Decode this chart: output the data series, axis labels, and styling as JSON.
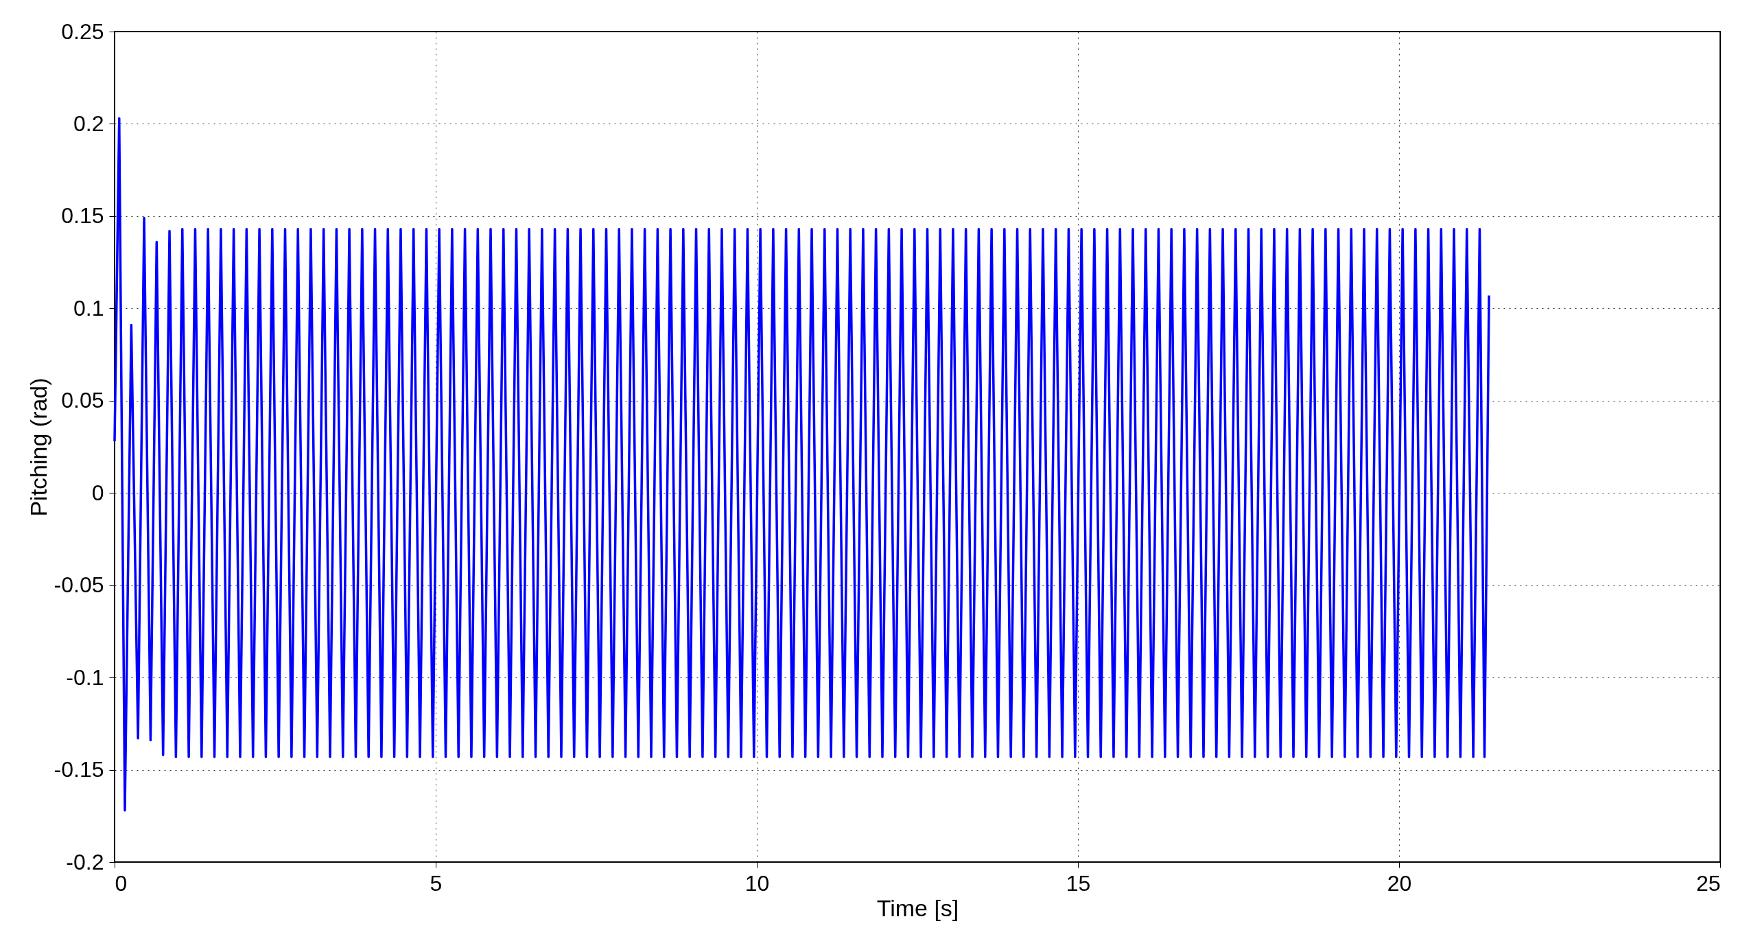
{
  "chart_data": {
    "type": "line",
    "xlabel": "Time [s]",
    "ylabel": "Pitching (rad)",
    "xlim": [
      0,
      25
    ],
    "xticks": [
      0,
      5,
      10,
      15,
      20,
      25
    ],
    "ylim": [
      -0.2,
      0.25
    ],
    "yticks": [
      -0.2,
      -0.15,
      -0.1,
      -0.05,
      0,
      0.05,
      0.1,
      0.15,
      0.2,
      0.25
    ],
    "grid": true,
    "x": [
      0,
      0.072,
      0.16,
      0.26,
      0.365,
      0.46,
      0.56,
      0.655,
      0.755,
      0.855,
      0.955,
      1.055,
      1.155,
      1.255,
      1.355,
      1.455,
      1.555,
      1.655,
      1.755,
      1.855,
      1.955,
      2.055,
      2.155,
      2.255,
      2.355,
      2.455,
      2.555,
      2.655,
      2.755,
      2.855,
      2.955,
      3.055,
      3.155,
      3.255,
      3.355,
      3.455,
      3.555,
      3.655,
      3.755,
      3.855,
      3.955,
      4.055,
      4.155,
      4.255,
      4.355,
      4.455,
      4.555,
      4.655,
      4.755,
      4.855,
      4.955,
      5.055,
      5.155,
      5.255,
      5.355,
      5.455,
      5.555,
      5.655,
      5.755,
      5.855,
      5.955,
      6.055,
      6.155,
      6.255,
      6.355,
      6.455,
      6.555,
      6.655,
      6.755,
      6.855,
      6.955,
      7.055,
      7.155,
      7.255,
      7.355,
      7.455,
      7.555,
      7.655,
      7.755,
      7.855,
      7.955,
      8.055,
      8.155,
      8.255,
      8.355,
      8.455,
      8.555,
      8.655,
      8.755,
      8.855,
      8.955,
      9.055,
      9.155,
      9.255,
      9.355,
      9.455,
      9.555,
      9.655,
      9.755,
      9.855,
      9.955,
      10.055,
      10.155,
      10.255,
      10.355,
      10.455,
      10.555,
      10.655,
      10.755,
      10.855,
      10.955,
      11.055,
      11.155,
      11.255,
      11.355,
      11.455,
      11.555,
      11.655,
      11.755,
      11.855,
      11.955,
      12.055,
      12.155,
      12.255,
      12.355,
      12.455,
      12.555,
      12.655,
      12.755,
      12.855,
      12.955,
      13.055,
      13.155,
      13.255,
      13.355,
      13.455,
      13.555,
      13.655,
      13.755,
      13.855,
      13.955,
      14.055,
      14.155,
      14.255,
      14.355,
      14.455,
      14.555,
      14.655,
      14.755,
      14.855,
      14.955,
      15.055,
      15.155,
      15.255,
      15.355,
      15.455,
      15.555,
      15.655,
      15.755,
      15.855,
      15.955,
      16.055,
      16.155,
      16.255,
      16.355,
      16.455,
      16.555,
      16.655,
      16.755,
      16.855,
      16.955,
      17.055,
      17.155,
      17.255,
      17.355,
      17.455,
      17.555,
      17.655,
      17.755,
      17.855,
      17.955,
      18.055,
      18.155,
      18.255,
      18.355,
      18.455,
      18.555,
      18.655,
      18.755,
      18.855,
      18.955,
      19.055,
      19.155,
      19.255,
      19.355,
      19.455,
      19.555,
      19.655,
      19.755,
      19.855,
      19.955,
      20.055,
      20.155,
      20.255,
      20.355,
      20.455,
      20.555,
      20.655,
      20.755,
      20.855,
      20.955,
      21.055,
      21.155,
      21.255,
      21.33,
      21.4
    ],
    "series": [
      {
        "color": "#0000ff",
        "values": [
          0.028,
          0.203,
          -0.172,
          0.091,
          -0.133,
          0.149,
          -0.134,
          0.136,
          -0.142,
          0.142,
          -0.143,
          0.143,
          -0.143,
          0.143,
          -0.143,
          0.143,
          -0.143,
          0.143,
          -0.143,
          0.143,
          -0.143,
          0.143,
          -0.143,
          0.143,
          -0.143,
          0.143,
          -0.143,
          0.143,
          -0.143,
          0.143,
          -0.143,
          0.143,
          -0.143,
          0.143,
          -0.143,
          0.143,
          -0.143,
          0.143,
          -0.143,
          0.143,
          -0.143,
          0.143,
          -0.143,
          0.143,
          -0.143,
          0.143,
          -0.143,
          0.143,
          -0.143,
          0.143,
          -0.143,
          0.143,
          -0.143,
          0.143,
          -0.143,
          0.143,
          -0.143,
          0.143,
          -0.143,
          0.143,
          -0.143,
          0.143,
          -0.143,
          0.143,
          -0.143,
          0.143,
          -0.143,
          0.143,
          -0.143,
          0.143,
          -0.143,
          0.143,
          -0.143,
          0.143,
          -0.143,
          0.143,
          -0.143,
          0.143,
          -0.143,
          0.143,
          -0.143,
          0.143,
          -0.143,
          0.143,
          -0.143,
          0.143,
          -0.143,
          0.143,
          -0.143,
          0.143,
          -0.143,
          0.143,
          -0.143,
          0.143,
          -0.143,
          0.143,
          -0.143,
          0.143,
          -0.143,
          0.143,
          -0.143,
          0.143,
          -0.143,
          0.143,
          -0.143,
          0.143,
          -0.143,
          0.143,
          -0.143,
          0.143,
          -0.143,
          0.143,
          -0.143,
          0.143,
          -0.143,
          0.143,
          -0.143,
          0.143,
          -0.143,
          0.143,
          -0.143,
          0.143,
          -0.143,
          0.143,
          -0.143,
          0.143,
          -0.143,
          0.143,
          -0.143,
          0.143,
          -0.143,
          0.143,
          -0.143,
          0.143,
          -0.143,
          0.143,
          -0.143,
          0.143,
          -0.143,
          0.143,
          -0.143,
          0.143,
          -0.143,
          0.143,
          -0.143,
          0.143,
          -0.143,
          0.143,
          -0.143,
          0.143,
          -0.143,
          0.143,
          -0.143,
          0.143,
          -0.143,
          0.143,
          -0.143,
          0.143,
          -0.143,
          0.143,
          -0.143,
          0.143,
          -0.143,
          0.143,
          -0.143,
          0.143,
          -0.143,
          0.143,
          -0.143,
          0.143,
          -0.143,
          0.143,
          -0.143,
          0.143,
          -0.143,
          0.143,
          -0.143,
          0.143,
          -0.143,
          0.143,
          -0.143,
          0.143,
          -0.143,
          0.143,
          -0.143,
          0.143,
          -0.143,
          0.143,
          -0.143,
          0.143,
          -0.143,
          0.143,
          -0.143,
          0.143,
          -0.143,
          0.143,
          -0.143,
          0.143,
          -0.143,
          0.143,
          -0.143,
          0.143,
          -0.143,
          0.143,
          -0.143,
          0.143,
          -0.143,
          0.143,
          -0.143,
          0.143,
          -0.143,
          0.143,
          -0.143,
          0.143,
          -0.143,
          0.107
        ]
      }
    ]
  }
}
